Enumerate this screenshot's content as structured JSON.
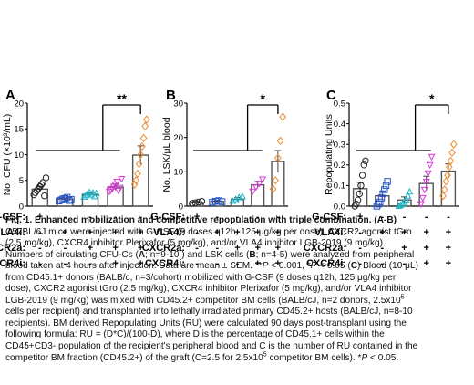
{
  "chart_data": [
    {
      "type": "scatter",
      "panel_label": "A",
      "ylabel": "No. CFU (×10³/mL)",
      "ylim": [
        0,
        20
      ],
      "yticks": [
        "0",
        "5",
        "10",
        "15",
        "20"
      ],
      "bar_means": [
        3.3,
        1.4,
        2.3,
        3.7,
        9.9
      ],
      "bar_sem": [
        0.5,
        0.2,
        0.3,
        0.6,
        1.8
      ],
      "significance": "**",
      "groups": [
        {
          "color": "#222222",
          "marker": "circle",
          "points": [
            2.2,
            2.6,
            3.0,
            3.4,
            3.8,
            4.2,
            4.6,
            2.0,
            5.5
          ]
        },
        {
          "color": "#2452c9",
          "marker": "square",
          "points": [
            1.0,
            1.2,
            1.4,
            1.5,
            1.7,
            1.1,
            1.3
          ]
        },
        {
          "color": "#19b3c4",
          "marker": "triangle-up",
          "points": [
            1.8,
            2.1,
            2.4,
            2.7,
            2.2,
            2.6,
            1.9,
            2.5
          ]
        },
        {
          "color": "#d63ad6",
          "marker": "triangle-down",
          "points": [
            2.8,
            3.1,
            3.4,
            3.8,
            4.2,
            4.8,
            3.0,
            3.6,
            5.3
          ]
        },
        {
          "color": "#f08a2c",
          "marker": "diamond",
          "points": [
            4.2,
            5.0,
            6.3,
            8.2,
            10.0,
            11.6,
            13.2,
            15.5,
            16.8
          ]
        }
      ]
    },
    {
      "type": "scatter",
      "panel_label": "B",
      "ylabel": "No. LSK/μL blood",
      "ylim": [
        0,
        30
      ],
      "yticks": [
        "0",
        "10",
        "20",
        "30"
      ],
      "bar_means": [
        1.1,
        1.4,
        2.0,
        6.2,
        13.0
      ],
      "bar_sem": [
        0.3,
        0.3,
        0.5,
        1.0,
        3.2
      ],
      "significance": "*",
      "groups": [
        {
          "color": "#222222",
          "marker": "circle",
          "points": [
            0.8,
            1.0,
            1.2,
            1.4
          ]
        },
        {
          "color": "#2452c9",
          "marker": "square",
          "points": [
            1.1,
            1.4,
            1.6,
            1.3
          ]
        },
        {
          "color": "#19b3c4",
          "marker": "triangle-up",
          "points": [
            1.5,
            2.0,
            2.5,
            2.8
          ]
        },
        {
          "color": "#d63ad6",
          "marker": "triangle-down",
          "points": [
            4.3,
            5.6,
            6.6,
            7.8
          ]
        },
        {
          "color": "#f08a2c",
          "marker": "diamond",
          "points": [
            5.0,
            7.5,
            14.0,
            19.0,
            26.0
          ]
        }
      ]
    },
    {
      "type": "scatter",
      "panel_label": "C",
      "ylabel": "Repopulating Units",
      "ylim": [
        0,
        0.5
      ],
      "yticks": [
        "0.0",
        "0.1",
        "0.2",
        "0.3",
        "0.4",
        "0.5"
      ],
      "bar_means": [
        0.085,
        0.05,
        0.03,
        0.11,
        0.17
      ],
      "bar_sem": [
        0.03,
        0.02,
        0.015,
        0.035,
        0.035
      ],
      "significance": "*",
      "groups": [
        {
          "color": "#222222",
          "marker": "circle",
          "points": [
            0.0,
            0.01,
            0.03,
            0.06,
            0.1,
            0.15,
            0.2,
            0.22
          ]
        },
        {
          "color": "#2452c9",
          "marker": "square",
          "points": [
            0.0,
            0.01,
            0.02,
            0.04,
            0.06,
            0.08,
            0.1,
            0.12
          ]
        },
        {
          "color": "#19b3c4",
          "marker": "triangle-up",
          "points": [
            0.0,
            0.005,
            0.01,
            0.02,
            0.03,
            0.05,
            0.07
          ]
        },
        {
          "color": "#d63ad6",
          "marker": "triangle-down",
          "points": [
            0.01,
            0.04,
            0.08,
            0.12,
            0.16,
            0.2,
            0.24
          ]
        },
        {
          "color": "#f08a2c",
          "marker": "diamond",
          "points": [
            0.05,
            0.08,
            0.12,
            0.15,
            0.19,
            0.22,
            0.26,
            0.3
          ]
        }
      ]
    }
  ],
  "design": {
    "rows": [
      "G-CSF:",
      "VLA4i:",
      "CXCR2a:",
      "CXCR4i:"
    ],
    "signs": [
      [
        "+",
        "-",
        "-",
        "-",
        "-"
      ],
      [
        "-",
        "+",
        "+",
        "+",
        "+"
      ],
      [
        "-",
        "-",
        "+",
        "+",
        "+"
      ],
      [
        "-",
        "-",
        "-",
        "+",
        "+"
      ]
    ]
  },
  "caption": {
    "title": "Fig. 1. Enhanced mobilization and competitive repopulation with triple combination. (A-B)",
    "l1": "C57BL/6J mice were injected with G-CSF (9 doses q12h, 125 μg/kg per dose), CXCR2 agonist tGro",
    "l2": "(2.5 mg/kg), CXCR4 inhibitor Plerixafor (5 mg/kg), and/or VLA4 inhibitor LGB-2019 (9 mg/kg).",
    "l3a": "Numbers of circulating CFU-Cs (",
    "l3A": "A",
    "l3b": "; n=9-10 ) and LSK cells (",
    "l3B": "B",
    "l3c": "; n=4-5)  were analyzed from peripheral",
    "l4a": "blood taken at 4 hours after injection. Data are mean ± SEM. **",
    "l4b": "P",
    "l4c": " < 0.001, *",
    "l4d": "P",
    "l4e": " < 0.05 (",
    "l4f": "C",
    "l4g": ") Blood (10 μL)",
    "l5": "from CD45.1+ donors (BALB/c, n=3/cohort) mobilized with G-CSF (9 doses q12h, 125 μg/kg per",
    "l6": "dose), CXCR2 agonist tGro (2.5 mg/kg), CXCR4 inhibitor Plerixafor (5 mg/kg), and/or VLA4 inhibitor",
    "l7a": "LGB-2019 (9 mg/kg) was mixed with CD45.2+ competitor BM cells (BALB/cJ, n=2 donors, 2.5x10",
    "l7sup": "5",
    "l8": "cells per recipient) and transplanted into lethally irradiated primary CD45.2+ hosts (BALB/cJ, n=8-10",
    "l9": "recipients). BM derived Repopulating Units (RU) were calculated 90 days post-transplant using the",
    "l10": "following formula: RU = (D*C)/(100-D), where D is the percentage of CD45.1+ cells within the",
    "l11": "CD45+CD3- population of the recipient's peripheral blood and C is the number of RU contained in the",
    "l12a": "competitor BM fraction (CD45.2+) of the graft (C=2.5 for 2.5x10",
    "l12sup": "5",
    "l12b": " competitor BM cells).   *",
    "l12c": "P",
    "l12d": " < 0.05."
  },
  "colors": {
    "gcsf": "#222222",
    "vla4i": "#2452c9",
    "vla4i_cxcr2a": "#19b3c4",
    "vla4i_cxcr2a_cxcr4i": "#d63ad6",
    "triple": "#f08a2c"
  }
}
